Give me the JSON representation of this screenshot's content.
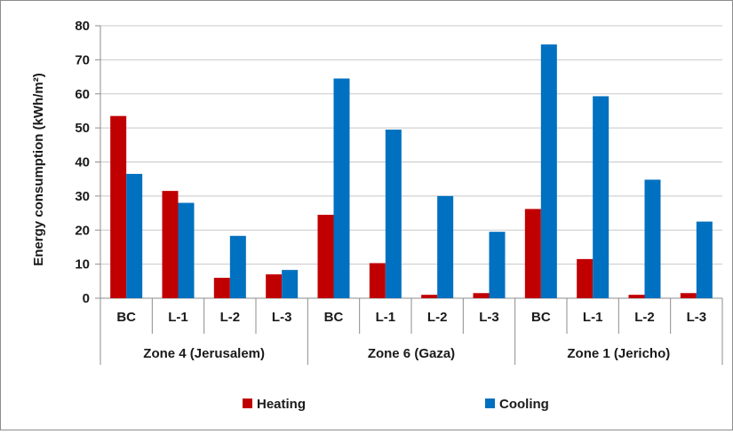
{
  "chart_data": {
    "type": "bar",
    "title": "",
    "xlabel": "",
    "ylabel": "Energy consumption (kWh/m²)",
    "ylim": [
      0,
      80
    ],
    "yticks": [
      0,
      10,
      20,
      30,
      40,
      50,
      60,
      70,
      80
    ],
    "grid": true,
    "legend_position": "bottom",
    "groups": [
      {
        "name": "Zone 4 (Jerusalem)",
        "categories": [
          "BC",
          "L-1",
          "L-2",
          "L-3"
        ]
      },
      {
        "name": "Zone 6 (Gaza)",
        "categories": [
          "BC",
          "L-1",
          "L-2",
          "L-3"
        ]
      },
      {
        "name": "Zone 1 (Jericho)",
        "categories": [
          "BC",
          "L-1",
          "L-2",
          "L-3"
        ]
      }
    ],
    "categories": [
      "BC",
      "L-1",
      "L-2",
      "L-3",
      "BC",
      "L-1",
      "L-2",
      "L-3",
      "BC",
      "L-1",
      "L-2",
      "L-3"
    ],
    "series": [
      {
        "name": "Heating",
        "color": "#c00000",
        "values": [
          53.5,
          31.5,
          6,
          7,
          24.5,
          10.3,
          1,
          1.5,
          26.2,
          11.5,
          1,
          1.5
        ]
      },
      {
        "name": "Cooling",
        "color": "#0070c0",
        "values": [
          36.5,
          28,
          18.3,
          8.3,
          64.5,
          49.5,
          30,
          19.5,
          74.5,
          59.3,
          34.8,
          22.5
        ]
      }
    ]
  }
}
